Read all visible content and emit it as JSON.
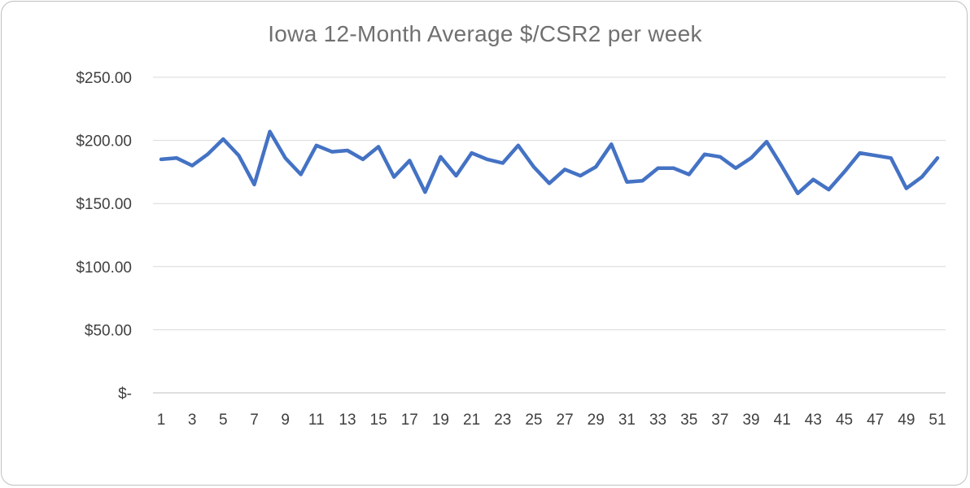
{
  "chart_data": {
    "type": "line",
    "title": "Iowa 12-Month Average $/CSR2 per week",
    "xlabel": "",
    "ylabel": "",
    "ylim": [
      0,
      250
    ],
    "y_ticks": [
      0,
      50,
      100,
      150,
      200,
      250
    ],
    "y_tick_labels": [
      "$-",
      "$50.00",
      "$100.00",
      "$150.00",
      "$200.00",
      "$250.00"
    ],
    "x": [
      1,
      2,
      3,
      4,
      5,
      6,
      7,
      8,
      9,
      10,
      11,
      12,
      13,
      14,
      15,
      16,
      17,
      18,
      19,
      20,
      21,
      22,
      23,
      24,
      25,
      26,
      27,
      28,
      29,
      30,
      31,
      32,
      33,
      34,
      35,
      36,
      37,
      38,
      39,
      40,
      41,
      42,
      43,
      44,
      45,
      46,
      47,
      48,
      49,
      50,
      51
    ],
    "x_tick_labels": [
      "1",
      "3",
      "5",
      "7",
      "9",
      "11",
      "13",
      "15",
      "17",
      "19",
      "21",
      "23",
      "25",
      "27",
      "29",
      "31",
      "33",
      "35",
      "37",
      "39",
      "41",
      "43",
      "45",
      "47",
      "49",
      "51"
    ],
    "grid": true,
    "line_color": "#4472c4",
    "series": [
      {
        "values": [
          185,
          186,
          180,
          189,
          201,
          188,
          165,
          207,
          186,
          173,
          196,
          191,
          192,
          185,
          195,
          171,
          184,
          159,
          187,
          172,
          190,
          185,
          182,
          196,
          179,
          166,
          177,
          172,
          179,
          197,
          167,
          168,
          178,
          178,
          173,
          189,
          187,
          178,
          186,
          199,
          179,
          158,
          169,
          161,
          175,
          190,
          188,
          186,
          162,
          171,
          186
        ]
      }
    ]
  }
}
